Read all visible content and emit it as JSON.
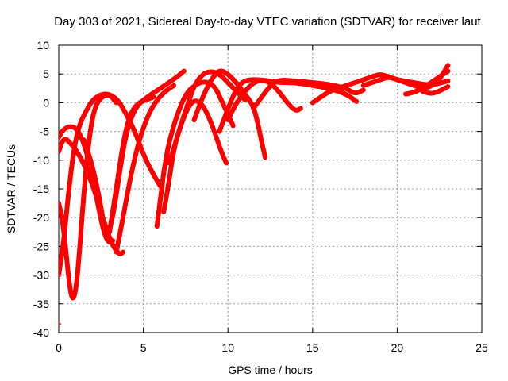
{
  "chart_data": {
    "type": "scatter",
    "title": "Day 303 of 2021, Sidereal Day-to-day VTEC variation (SDTVAR) for receiver laut",
    "xlabel": "GPS time / hours",
    "ylabel": "SDTVAR / TECUs",
    "xlim": [
      0,
      25
    ],
    "ylim": [
      -40,
      10
    ],
    "xticks": [
      0,
      5,
      10,
      15,
      20,
      25
    ],
    "yticks": [
      -40,
      -35,
      -30,
      -25,
      -20,
      -15,
      -10,
      -5,
      0,
      5,
      10
    ],
    "grid": true,
    "marker": "+",
    "color": "#ff0000",
    "series": [
      {
        "name": "arc1",
        "points": [
          [
            0.0,
            -6
          ],
          [
            0.3,
            -4.5
          ],
          [
            0.8,
            -4
          ],
          [
            1.2,
            -5
          ],
          [
            1.6,
            -8
          ],
          [
            2.0,
            -13
          ],
          [
            2.4,
            -19
          ],
          [
            2.7,
            -23
          ],
          [
            3.0,
            -24.5
          ],
          [
            3.2,
            -24
          ]
        ]
      },
      {
        "name": "arc2",
        "points": [
          [
            0.0,
            -17.5
          ],
          [
            0.2,
            -20
          ],
          [
            0.4,
            -25
          ],
          [
            0.6,
            -31
          ],
          [
            0.8,
            -34.5
          ],
          [
            1.0,
            -33
          ],
          [
            1.2,
            -27
          ],
          [
            1.5,
            -15
          ],
          [
            1.8,
            -6
          ],
          [
            2.1,
            -1
          ],
          [
            2.5,
            1
          ],
          [
            3.0,
            1.5
          ],
          [
            3.4,
            0
          ]
        ]
      },
      {
        "name": "arc3",
        "points": [
          [
            0.0,
            -30
          ],
          [
            0.3,
            -24
          ],
          [
            0.6,
            -15
          ],
          [
            0.9,
            -8
          ],
          [
            1.2,
            -4
          ],
          [
            1.6,
            -1.5
          ],
          [
            2.0,
            0.5
          ],
          [
            2.5,
            1.5
          ],
          [
            3.0,
            1.5
          ],
          [
            3.5,
            0.5
          ],
          [
            4.0,
            -2
          ],
          [
            4.5,
            -5
          ],
          [
            5.0,
            -9
          ],
          [
            5.5,
            -12
          ],
          [
            6.0,
            -14.5
          ]
        ]
      },
      {
        "name": "arc4",
        "points": [
          [
            0.0,
            -8.5
          ],
          [
            0.3,
            -6
          ],
          [
            0.7,
            -7
          ],
          [
            1.2,
            -9
          ],
          [
            1.7,
            -12
          ],
          [
            2.2,
            -16
          ],
          [
            2.7,
            -21
          ],
          [
            3.2,
            -25
          ],
          [
            3.6,
            -26.5
          ],
          [
            3.8,
            -26
          ]
        ]
      },
      {
        "name": "arc5",
        "points": [
          [
            1.5,
            -6.5
          ],
          [
            2.0,
            -11
          ],
          [
            2.5,
            -18
          ],
          [
            2.8,
            -24
          ],
          [
            3.2,
            -20
          ],
          [
            3.6,
            -12
          ],
          [
            4.0,
            -5
          ],
          [
            4.5,
            -1
          ],
          [
            5.0,
            0.5
          ],
          [
            5.5,
            1.5
          ],
          [
            6.0,
            2.5
          ],
          [
            6.5,
            3.5
          ],
          [
            7.0,
            4.5
          ],
          [
            7.4,
            5.5
          ]
        ]
      },
      {
        "name": "arc6",
        "points": [
          [
            3.0,
            -22.5
          ],
          [
            3.4,
            -15
          ],
          [
            3.8,
            -7
          ],
          [
            4.2,
            -2
          ],
          [
            4.7,
            0
          ],
          [
            5.2,
            0.5
          ],
          [
            5.6,
            1
          ]
        ]
      },
      {
        "name": "arc7",
        "points": [
          [
            3.4,
            -26
          ],
          [
            3.8,
            -20
          ],
          [
            4.3,
            -12
          ],
          [
            4.8,
            -6
          ],
          [
            5.3,
            -2
          ],
          [
            5.8,
            0.5
          ],
          [
            6.3,
            2
          ],
          [
            6.8,
            3
          ]
        ]
      },
      {
        "name": "arc8",
        "points": [
          [
            5.8,
            -21.5
          ],
          [
            6.0,
            -17
          ],
          [
            6.2,
            -12
          ],
          [
            6.5,
            -7
          ],
          [
            7.0,
            -2
          ],
          [
            7.5,
            1.5
          ],
          [
            8.0,
            3
          ],
          [
            8.6,
            3.8
          ],
          [
            9.2,
            3
          ],
          [
            9.6,
            0.5
          ],
          [
            10.0,
            -2
          ],
          [
            10.3,
            -4
          ]
        ]
      },
      {
        "name": "arc9",
        "points": [
          [
            6.5,
            -10.5
          ],
          [
            6.8,
            -8
          ],
          [
            7.2,
            -4
          ],
          [
            7.6,
            -0.5
          ],
          [
            8.0,
            3
          ],
          [
            8.5,
            5
          ],
          [
            9.0,
            5.5
          ],
          [
            9.5,
            5
          ],
          [
            10.0,
            3.5
          ],
          [
            10.5,
            2
          ],
          [
            11.0,
            0.5
          ]
        ]
      },
      {
        "name": "arc10",
        "points": [
          [
            6.2,
            -19
          ],
          [
            6.5,
            -14
          ],
          [
            6.8,
            -8
          ],
          [
            7.2,
            -4
          ],
          [
            7.6,
            -1
          ],
          [
            8.0,
            0.5
          ],
          [
            8.4,
            0
          ],
          [
            8.8,
            -2
          ],
          [
            9.2,
            -5
          ],
          [
            9.6,
            -8.5
          ],
          [
            9.9,
            -10.5
          ]
        ]
      },
      {
        "name": "arc11",
        "points": [
          [
            8.0,
            -3
          ],
          [
            8.5,
            1
          ],
          [
            9.0,
            4
          ],
          [
            9.5,
            5.8
          ],
          [
            10.0,
            5
          ],
          [
            10.5,
            3.5
          ],
          [
            11.0,
            1.5
          ],
          [
            11.5,
            -0.5
          ],
          [
            11.8,
            -4
          ],
          [
            12.0,
            -7
          ],
          [
            12.2,
            -9.5
          ]
        ]
      },
      {
        "name": "arc12",
        "points": [
          [
            10.0,
            -3
          ],
          [
            10.5,
            0
          ],
          [
            11.0,
            2
          ],
          [
            11.5,
            3.5
          ],
          [
            12.0,
            4
          ],
          [
            12.5,
            3.5
          ],
          [
            13.0,
            2
          ],
          [
            13.5,
            0
          ],
          [
            14.0,
            -1.5
          ],
          [
            14.3,
            -1
          ]
        ]
      },
      {
        "name": "arc13",
        "points": [
          [
            9.5,
            -5
          ],
          [
            10.0,
            -1
          ],
          [
            10.5,
            2.5
          ],
          [
            11.0,
            4
          ],
          [
            12.0,
            4
          ],
          [
            13.0,
            3.5
          ],
          [
            14.0,
            3.5
          ],
          [
            15.0,
            3
          ],
          [
            16.0,
            2.5
          ],
          [
            17.0,
            1.5
          ],
          [
            17.6,
            0.2
          ]
        ]
      },
      {
        "name": "arc14",
        "points": [
          [
            11.5,
            -1
          ],
          [
            12.0,
            1
          ],
          [
            12.5,
            3
          ],
          [
            13.0,
            4
          ],
          [
            14.0,
            3.8
          ],
          [
            15.0,
            3.5
          ],
          [
            16.0,
            3.2
          ],
          [
            17.0,
            2.5
          ],
          [
            17.5,
            1.5
          ],
          [
            18.0,
            2.2
          ]
        ]
      },
      {
        "name": "arc15",
        "points": [
          [
            15.0,
            0
          ],
          [
            15.5,
            1
          ],
          [
            16.0,
            2
          ],
          [
            16.5,
            2.5
          ],
          [
            17.0,
            3
          ],
          [
            17.5,
            3.5
          ],
          [
            18.0,
            4
          ],
          [
            18.5,
            4.5
          ],
          [
            19.0,
            5
          ],
          [
            19.5,
            4.5
          ],
          [
            20.0,
            4
          ],
          [
            21.0,
            3.5
          ],
          [
            22.0,
            3
          ],
          [
            23.0,
            3.8
          ]
        ]
      },
      {
        "name": "arc16",
        "points": [
          [
            18.0,
            3
          ],
          [
            18.5,
            3.5
          ],
          [
            19.0,
            4
          ],
          [
            19.5,
            4.5
          ],
          [
            20.0,
            4
          ],
          [
            20.5,
            3.5
          ],
          [
            21.0,
            3
          ],
          [
            21.5,
            2.5
          ],
          [
            22.0,
            2.8
          ],
          [
            22.5,
            4
          ],
          [
            23.0,
            6.5
          ]
        ]
      },
      {
        "name": "arc17",
        "points": [
          [
            20.5,
            1.5
          ],
          [
            21.0,
            1.8
          ],
          [
            21.5,
            2.5
          ],
          [
            22.0,
            3.5
          ],
          [
            22.5,
            4.5
          ],
          [
            23.0,
            5.5
          ]
        ]
      },
      {
        "name": "arc18",
        "points": [
          [
            21.5,
            2
          ],
          [
            22.0,
            1.5
          ],
          [
            22.5,
            2
          ],
          [
            23.0,
            2.8
          ]
        ]
      },
      {
        "name": "point1",
        "points": [
          [
            0.0,
            -38.5
          ]
        ]
      }
    ]
  }
}
